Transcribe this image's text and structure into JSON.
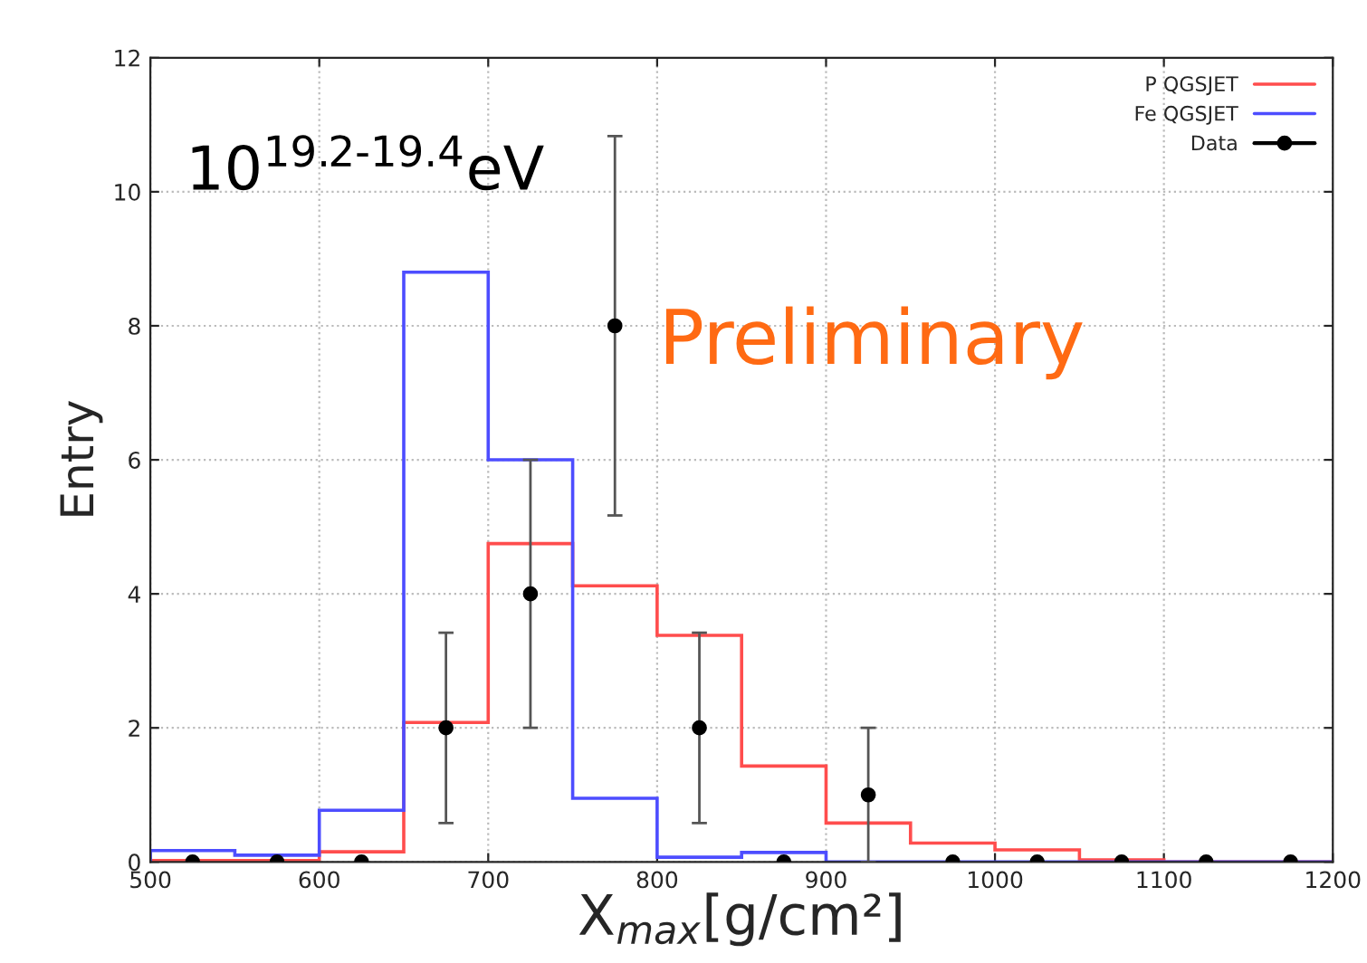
{
  "chart_data": {
    "type": "histogram",
    "xlabel": "X$_{max}$[g/cm²]",
    "ylabel": "Entry",
    "annotations": [
      "10$^{19.2-19.4}$eV",
      "Preliminary"
    ],
    "bins": [
      500,
      550,
      600,
      650,
      700,
      750,
      800,
      850,
      900,
      950,
      1000,
      1050,
      1100,
      1150,
      1200
    ],
    "series": [
      {
        "name": "P QGSJET",
        "color": "#ff4d4d",
        "values": [
          0.02,
          0.02,
          0.15,
          2.08,
          4.75,
          4.12,
          3.38,
          1.43,
          0.58,
          0.28,
          0.18,
          0.03,
          0,
          0
        ]
      },
      {
        "name": "Fe QGSJET",
        "color": "#4d4dff",
        "values": [
          0.17,
          0.1,
          0.77,
          8.8,
          6.0,
          0.95,
          0.07,
          0.14,
          0,
          0,
          0,
          0,
          0,
          0
        ]
      },
      {
        "name": "Data",
        "type": "scatter",
        "color": "#000000",
        "marker": "circle",
        "x": [
          525,
          575,
          625,
          675,
          725,
          775,
          825,
          875,
          925,
          975,
          1025,
          1075,
          1125,
          1175
        ],
        "values": [
          0,
          0,
          0,
          2,
          4,
          8,
          2,
          0,
          1,
          0,
          0,
          0,
          0,
          0
        ],
        "errors": [
          null,
          null,
          null,
          1.42,
          2,
          2.83,
          1.42,
          null,
          1,
          null,
          null,
          null,
          null,
          null
        ]
      }
    ],
    "xlim": [
      500,
      1200
    ],
    "xticks": [
      500,
      600,
      700,
      800,
      900,
      1000,
      1100,
      1200
    ],
    "ylim": [
      0,
      12
    ],
    "yticks": [
      0,
      2,
      4,
      6,
      8,
      10,
      12
    ],
    "grid": true,
    "legend": "top right"
  }
}
